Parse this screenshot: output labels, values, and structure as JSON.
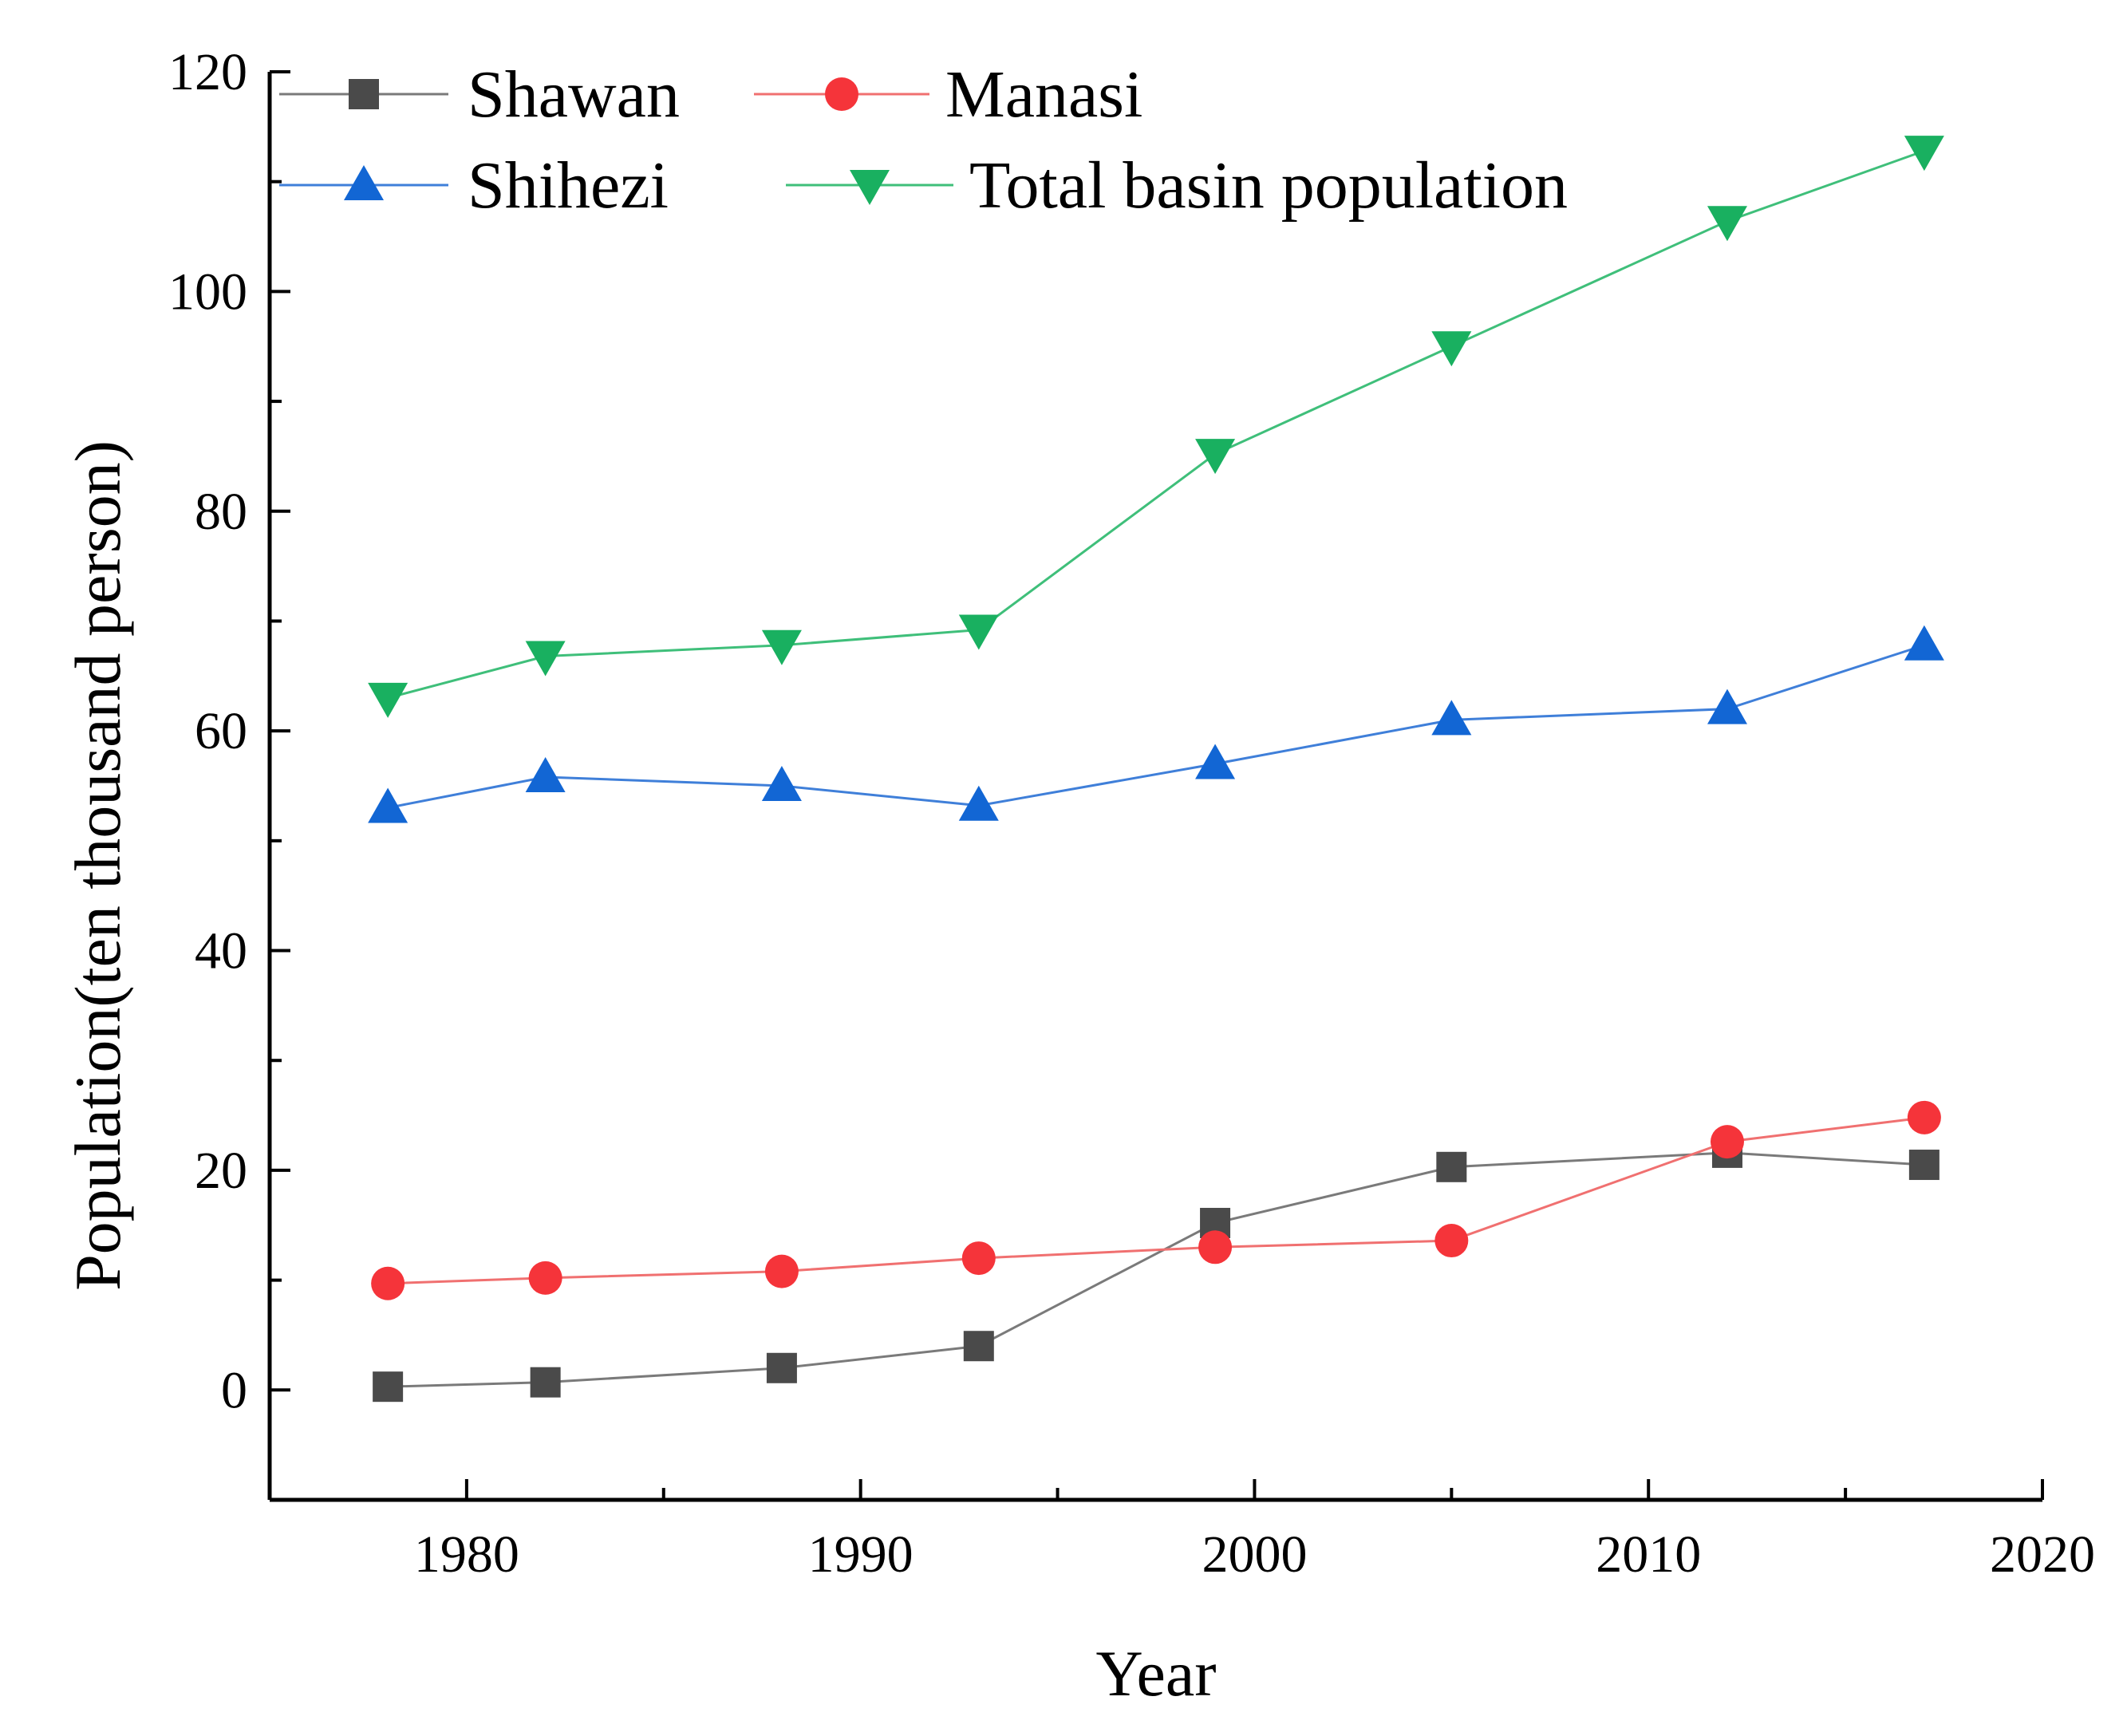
{
  "chart_data": {
    "type": "line",
    "title": "",
    "xlabel": "Year",
    "ylabel": "Population(ten thousand person)",
    "xlim": [
      1975,
      2020
    ],
    "ylim": [
      -10,
      120
    ],
    "xticks": [
      1980,
      1990,
      2000,
      2010,
      2020
    ],
    "yticks": [
      0,
      20,
      40,
      60,
      80,
      100,
      120
    ],
    "grid": false,
    "legend_position": "top",
    "x": [
      1978,
      1982,
      1988,
      1993,
      1999,
      2005,
      2012,
      2017
    ],
    "series": [
      {
        "name": "Shawan",
        "marker": "square",
        "color": "#4a4a4a",
        "line_color": "#7a7a7a",
        "values": [
          0.3,
          0.7,
          2.0,
          4.0,
          15.2,
          20.3,
          21.6,
          20.5
        ]
      },
      {
        "name": "Manasi",
        "marker": "circle",
        "color": "#f5343a",
        "line_color": "#f07070",
        "values": [
          9.7,
          10.2,
          10.8,
          12.0,
          13.0,
          13.6,
          22.6,
          24.8
        ]
      },
      {
        "name": "Shihezi",
        "marker": "triangle-up",
        "color": "#1266d4",
        "line_color": "#3f7fd9",
        "values": [
          53.0,
          55.8,
          55.0,
          53.2,
          57.0,
          61.0,
          62.0,
          67.8
        ]
      },
      {
        "name": "Total basin population",
        "marker": "triangle-down",
        "color": "#19b060",
        "line_color": "#3fbf7a",
        "values": [
          63.0,
          66.8,
          67.8,
          69.2,
          85.2,
          95.0,
          106.4,
          112.8
        ]
      }
    ]
  }
}
